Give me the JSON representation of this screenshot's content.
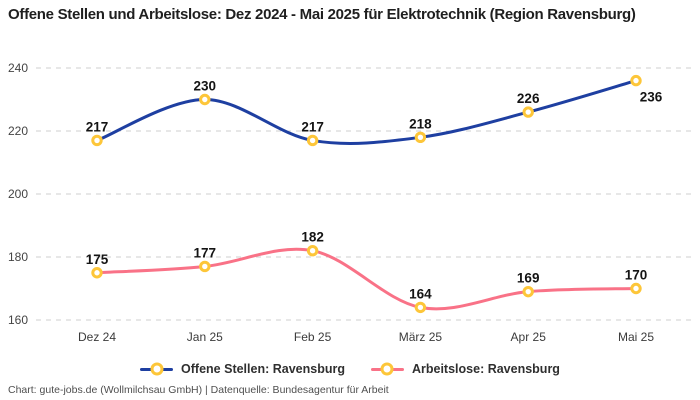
{
  "title": "Offene Stellen und Arbeitslose: Dez 2024 - Mai 2025 für Elektrotechnik (Region Ravensburg)",
  "footer": "Chart: gute-jobs.de (Wollmilchsau GmbH) | Datenquelle: Bundesagentur für Arbeit",
  "colors": {
    "open_positions": "#1e3fa1",
    "unemployed": "#f97287",
    "marker_stroke": "#fdc639",
    "marker_fill": "#ffffff",
    "grid": "#cfcfcf",
    "axis_text": "#3b3b3b",
    "label_text": "#141414"
  },
  "chart_data": {
    "type": "line",
    "x": [
      "Dez 24",
      "Jan 25",
      "Feb 25",
      "März 25",
      "Apr 25",
      "Mai 25"
    ],
    "series": [
      {
        "name": "Offene Stellen: Ravensburg",
        "values": [
          217,
          230,
          217,
          218,
          226,
          236
        ],
        "color": "#1e3fa1",
        "label_positions": [
          "above",
          "above",
          "above",
          "above",
          "above",
          "below-right"
        ]
      },
      {
        "name": "Arbeitslose: Ravensburg",
        "values": [
          175,
          177,
          182,
          164,
          169,
          170
        ],
        "color": "#f97287",
        "label_positions": [
          "above",
          "above",
          "above",
          "above",
          "above",
          "above"
        ]
      }
    ],
    "title": "Offene Stellen und Arbeitslose: Dez 2024 - Mai 2025 für Elektrotechnik (Region Ravensburg)",
    "xlabel": "",
    "ylabel": "",
    "ylim": [
      160,
      240
    ],
    "yticks": [
      160,
      180,
      200,
      220,
      240
    ],
    "grid": "horizontal-dashed",
    "legend_position": "bottom",
    "marker": {
      "fill": "#ffffff",
      "stroke": "#fdc639"
    }
  }
}
